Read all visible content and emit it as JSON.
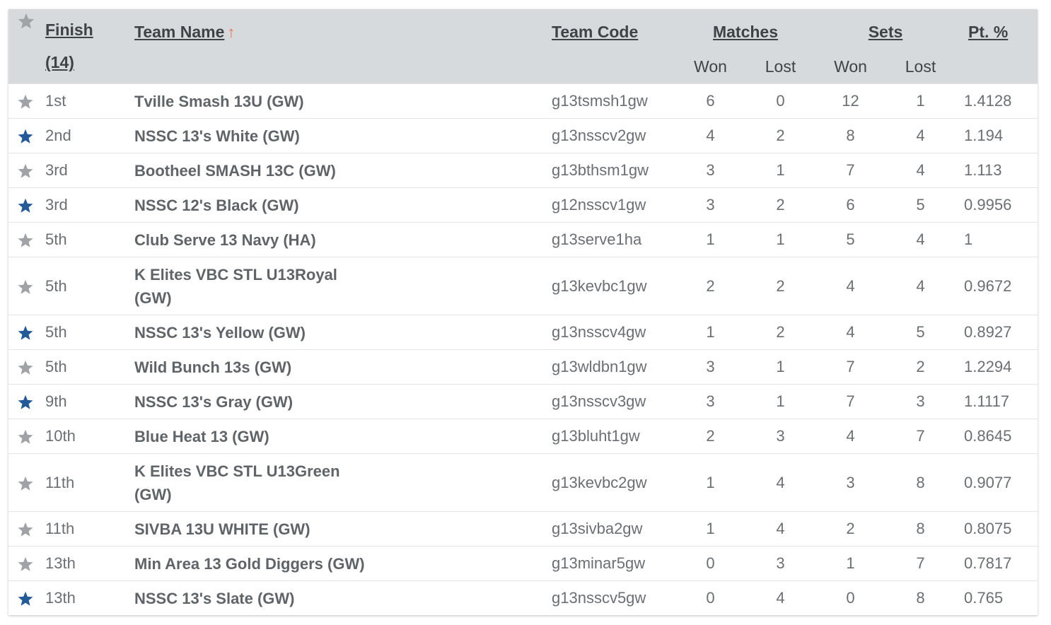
{
  "colors": {
    "star_blue": "#225a9a",
    "star_gray": "#a0a3a6",
    "header_bg": "#d7dadd",
    "sort_arrow": "#e8734e"
  },
  "header": {
    "finish_label": "Finish",
    "finish_count": "(14)",
    "team_name_label": "Team Name",
    "sort_arrow": "↑",
    "team_code_label": "Team Code",
    "matches_label": "Matches",
    "sets_label": "Sets",
    "pct_label": "Pt. %",
    "won_label": "Won",
    "lost_label": "Lost",
    "sets_won_label": "Won",
    "sets_lost_label": "Lost"
  },
  "rows": [
    {
      "star": "gray",
      "finish": "1st",
      "team_line1": "Tville Smash 13U (GW)",
      "team_line2": "",
      "code": "g13tsmsh1gw",
      "mw": "6",
      "ml": "0",
      "sw": "12",
      "sl": "1",
      "pct": "1.4128"
    },
    {
      "star": "blue",
      "finish": "2nd",
      "team_line1": "NSSC 13's White (GW)",
      "team_line2": "",
      "code": "g13nsscv2gw",
      "mw": "4",
      "ml": "2",
      "sw": "8",
      "sl": "4",
      "pct": "1.194"
    },
    {
      "star": "gray",
      "finish": "3rd",
      "team_line1": "Bootheel SMASH 13C (GW)",
      "team_line2": "",
      "code": "g13bthsm1gw",
      "mw": "3",
      "ml": "1",
      "sw": "7",
      "sl": "4",
      "pct": "1.113"
    },
    {
      "star": "blue",
      "finish": "3rd",
      "team_line1": "NSSC 12's Black (GW)",
      "team_line2": "",
      "code": "g12nsscv1gw",
      "mw": "3",
      "ml": "2",
      "sw": "6",
      "sl": "5",
      "pct": "0.9956"
    },
    {
      "star": "gray",
      "finish": "5th",
      "team_line1": "Club Serve 13 Navy (HA)",
      "team_line2": "",
      "code": "g13serve1ha",
      "mw": "1",
      "ml": "1",
      "sw": "5",
      "sl": "4",
      "pct": "1"
    },
    {
      "star": "gray",
      "finish": "5th",
      "team_line1": "K Elites VBC STL U13Royal",
      "team_line2": "(GW)",
      "code": "g13kevbc1gw",
      "mw": "2",
      "ml": "2",
      "sw": "4",
      "sl": "4",
      "pct": "0.9672"
    },
    {
      "star": "blue",
      "finish": "5th",
      "team_line1": "NSSC 13's Yellow (GW)",
      "team_line2": "",
      "code": "g13nsscv4gw",
      "mw": "1",
      "ml": "2",
      "sw": "4",
      "sl": "5",
      "pct": "0.8927"
    },
    {
      "star": "gray",
      "finish": "5th",
      "team_line1": "Wild Bunch 13s (GW)",
      "team_line2": "",
      "code": "g13wldbn1gw",
      "mw": "3",
      "ml": "1",
      "sw": "7",
      "sl": "2",
      "pct": "1.2294"
    },
    {
      "star": "blue",
      "finish": "9th",
      "team_line1": "NSSC 13's Gray (GW)",
      "team_line2": "",
      "code": "g13nsscv3gw",
      "mw": "3",
      "ml": "1",
      "sw": "7",
      "sl": "3",
      "pct": "1.1117"
    },
    {
      "star": "gray",
      "finish": "10th",
      "team_line1": "Blue Heat 13 (GW)",
      "team_line2": "",
      "code": "g13bluht1gw",
      "mw": "2",
      "ml": "3",
      "sw": "4",
      "sl": "7",
      "pct": "0.8645"
    },
    {
      "star": "gray",
      "finish": "11th",
      "team_line1": "K Elites VBC STL U13Green",
      "team_line2": "(GW)",
      "code": "g13kevbc2gw",
      "mw": "1",
      "ml": "4",
      "sw": "3",
      "sl": "8",
      "pct": "0.9077"
    },
    {
      "star": "gray",
      "finish": "11th",
      "team_line1": "SIVBA 13U WHITE (GW)",
      "team_line2": "",
      "code": "g13sivba2gw",
      "mw": "1",
      "ml": "4",
      "sw": "2",
      "sl": "8",
      "pct": "0.8075"
    },
    {
      "star": "gray",
      "finish": "13th",
      "team_line1": "Min Area 13 Gold Diggers (GW)",
      "team_line2": "",
      "code": "g13minar5gw",
      "mw": "0",
      "ml": "3",
      "sw": "1",
      "sl": "7",
      "pct": "0.7817"
    },
    {
      "star": "blue",
      "finish": "13th",
      "team_line1": "NSSC 13's Slate (GW)",
      "team_line2": "",
      "code": "g13nsscv5gw",
      "mw": "0",
      "ml": "4",
      "sw": "0",
      "sl": "8",
      "pct": "0.765"
    }
  ]
}
